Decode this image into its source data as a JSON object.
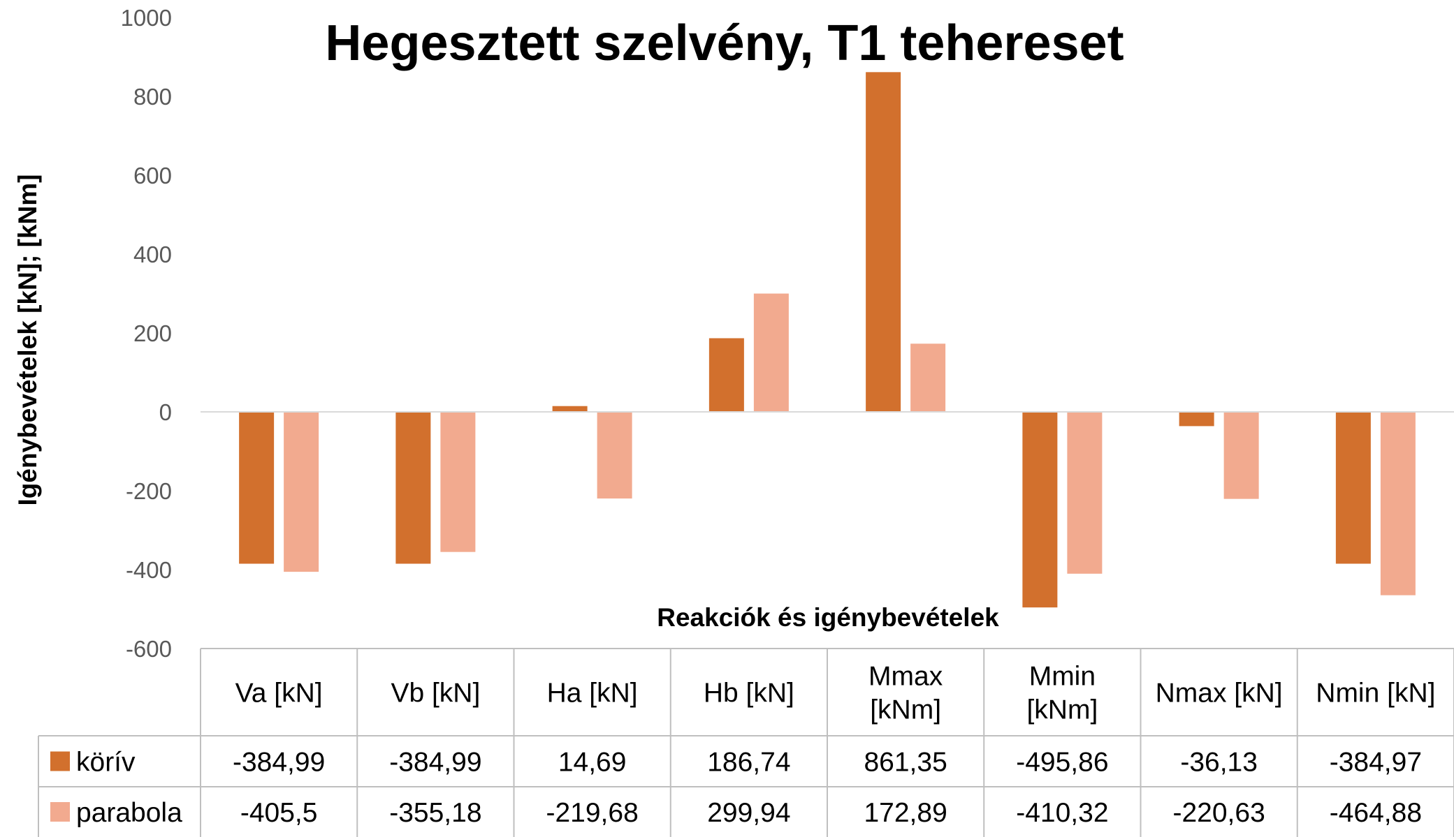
{
  "chart_data": {
    "type": "bar",
    "title": "Hegesztett szelvény, T1 tehereset",
    "xlabel": "Reakciók és igénybevételek",
    "ylabel": "Igénybevételek [kN]; [kNm]",
    "ylim": [
      -600,
      1000
    ],
    "yticks": [
      1000,
      800,
      600,
      400,
      200,
      0,
      -200,
      -400,
      -600
    ],
    "grid": false,
    "legend": "data-table",
    "categories": [
      [
        "Va [kN]"
      ],
      [
        "Vb [kN]"
      ],
      [
        "Ha [kN]"
      ],
      [
        "Hb [kN]"
      ],
      [
        "Mmax",
        "[kNm]"
      ],
      [
        "Mmin",
        "[kNm]"
      ],
      [
        "Nmax [kN]"
      ],
      [
        "Nmin [kN]"
      ]
    ],
    "series": [
      {
        "name": "körív",
        "color": "#d2702d",
        "values": [
          -384.99,
          -384.99,
          14.69,
          186.74,
          861.35,
          -495.86,
          -36.13,
          -384.97
        ],
        "labels": [
          "-384,99",
          "-384,99",
          "14,69",
          "186,74",
          "861,35",
          "-495,86",
          "-36,13",
          "-384,97"
        ]
      },
      {
        "name": "parabola",
        "color": "#f2aa8f",
        "values": [
          -405.5,
          -355.18,
          -219.68,
          299.94,
          172.89,
          -410.32,
          -220.63,
          -464.88
        ],
        "labels": [
          "-405,5",
          "-355,18",
          "-219,68",
          "299,94",
          "172,89",
          "-410,32",
          "-220,63",
          "-464,88"
        ]
      }
    ]
  }
}
